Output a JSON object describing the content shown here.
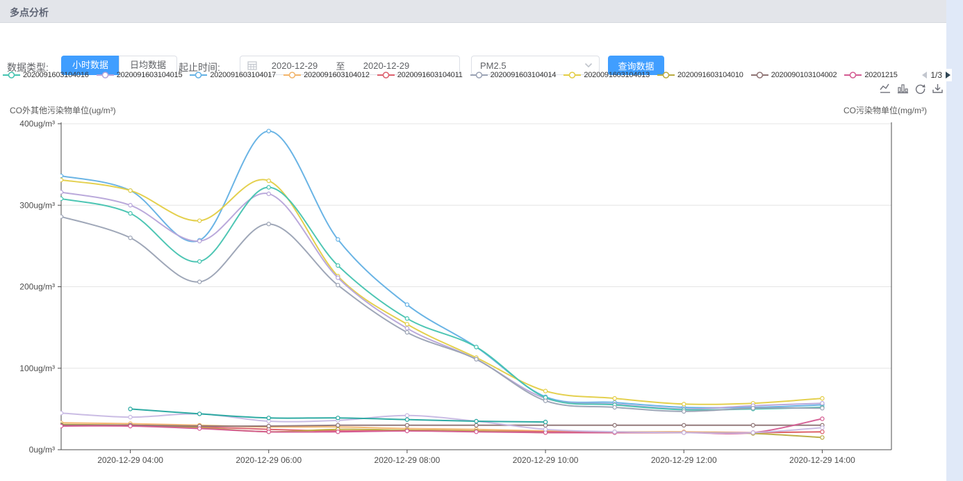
{
  "page": {
    "title": "多点分析"
  },
  "toolbar": {
    "data_type_label": "数据类型:",
    "hour_button": "小时数据",
    "daily_button": "日均数据",
    "range_label": "起止时间:",
    "start_date": "2020-12-29",
    "range_separator": "至",
    "end_date": "2020-12-29",
    "pollutant_selected": "PM2.5",
    "query_button": "查询数据",
    "accent_color": "#409eff"
  },
  "icons": {
    "calendar": "calendar-grid",
    "select_chevron": "chevron-down",
    "legend_prev": "left-triangle",
    "legend_next": "right-triangle",
    "toolbox": [
      "line-chart",
      "bar-chart",
      "restore",
      "save-image"
    ]
  },
  "legend": {
    "page_indicator": "1/3",
    "items": [
      {
        "label": "2020091603104016",
        "color": "#45c3b0"
      },
      {
        "label": "2020091603104015",
        "color": "#b6a4d9"
      },
      {
        "label": "2020091603104017",
        "color": "#62b0e4"
      },
      {
        "label": "2020091603104012",
        "color": "#f2b46a"
      },
      {
        "label": "2020091603104011",
        "color": "#dc5f6d"
      },
      {
        "label": "2020091603104014",
        "color": "#9aa2b4"
      },
      {
        "label": "2020091603104013",
        "color": "#e3cd45"
      },
      {
        "label": "2020091603104010",
        "color": "#b9ab3f"
      },
      {
        "label": "2020090103104002",
        "color": "#8e7374"
      },
      {
        "label": "20201215",
        "color": "#d45b92"
      }
    ]
  },
  "chart_data": {
    "type": "line",
    "smooth": true,
    "grid": "horizontal-only",
    "left_axis_title": "CO外其他污染物单位(ug/m³)",
    "right_axis_title": "CO污染物单位(mg/m³)",
    "xlim": [
      3,
      15
    ],
    "ylim": [
      0,
      400
    ],
    "x_hours": [
      3,
      4,
      5,
      6,
      7,
      8,
      9,
      10,
      11,
      12,
      13,
      14
    ],
    "x_ticks": [
      {
        "hour": 4,
        "label": "2020-12-29 04:00"
      },
      {
        "hour": 6,
        "label": "2020-12-29 06:00"
      },
      {
        "hour": 8,
        "label": "2020-12-29 08:00"
      },
      {
        "hour": 10,
        "label": "2020-12-29 10:00"
      },
      {
        "hour": 12,
        "label": "2020-12-29 12:00"
      },
      {
        "hour": 14,
        "label": "2020-12-29 14:00"
      }
    ],
    "y_ticks": [
      {
        "value": 0,
        "label": "0ug/m³"
      },
      {
        "value": 100,
        "label": "100ug/m³"
      },
      {
        "value": 200,
        "label": "200ug/m³"
      },
      {
        "value": 300,
        "label": "300ug/m³"
      },
      {
        "value": 400,
        "label": "400ug/m³"
      }
    ],
    "series": [
      {
        "name": "2020091603104017",
        "color": "#62b0e4",
        "values": [
          336,
          318,
          257,
          391,
          258,
          178,
          126,
          65,
          58,
          52,
          52,
          55
        ]
      },
      {
        "name": "2020091603104013",
        "color": "#e3cd45",
        "values": [
          331,
          318,
          281,
          330,
          213,
          154,
          113,
          72,
          63,
          56,
          57,
          63
        ]
      },
      {
        "name": "2020091603104015",
        "color": "#b6a4d9",
        "values": [
          316,
          300,
          256,
          314,
          211,
          149,
          111,
          63,
          56,
          50,
          54,
          57
        ]
      },
      {
        "name": "2020091603104016",
        "color": "#45c3b0",
        "values": [
          308,
          290,
          231,
          322,
          226,
          161,
          126,
          64,
          55,
          49,
          50,
          52
        ]
      },
      {
        "name": "2020091603104014",
        "color": "#9aa2b4",
        "values": [
          286,
          260,
          206,
          277,
          202,
          144,
          111,
          60,
          52,
          47,
          51,
          51
        ]
      },
      {
        "name": "2020091603104012",
        "color": "#f2b46a",
        "values": [
          33,
          32,
          30,
          28,
          28,
          26,
          25,
          23,
          22,
          22,
          21,
          22
        ]
      },
      {
        "name": "2020091603104011",
        "color": "#dc5f6d",
        "values": [
          30,
          30,
          28,
          25,
          23,
          24,
          23,
          22,
          21,
          21,
          21,
          22
        ]
      },
      {
        "name": "2020091603104010",
        "color": "#b9ab3f",
        "values": [
          31,
          30,
          27,
          22,
          25,
          24,
          23,
          21,
          21,
          21,
          20,
          15
        ]
      },
      {
        "name": "2020090103104002",
        "color": "#8e7374",
        "values": [
          30,
          30,
          29,
          29,
          30,
          30,
          30,
          30,
          30,
          30,
          30,
          30
        ]
      },
      {
        "name": "20201215",
        "color": "#d45b92",
        "values": [
          29,
          29,
          26,
          22,
          22,
          23,
          22,
          21,
          21,
          21,
          21,
          38
        ]
      },
      {
        "name": "",
        "color": "#c7b8e3",
        "values": [
          45,
          40,
          44,
          35,
          36,
          42,
          35,
          25,
          22,
          21,
          21,
          27
        ]
      },
      {
        "name": "",
        "color": "#23a69e",
        "values": [
          null,
          50,
          44,
          39,
          39,
          37,
          35,
          34,
          null,
          null,
          null,
          null
        ]
      }
    ]
  }
}
